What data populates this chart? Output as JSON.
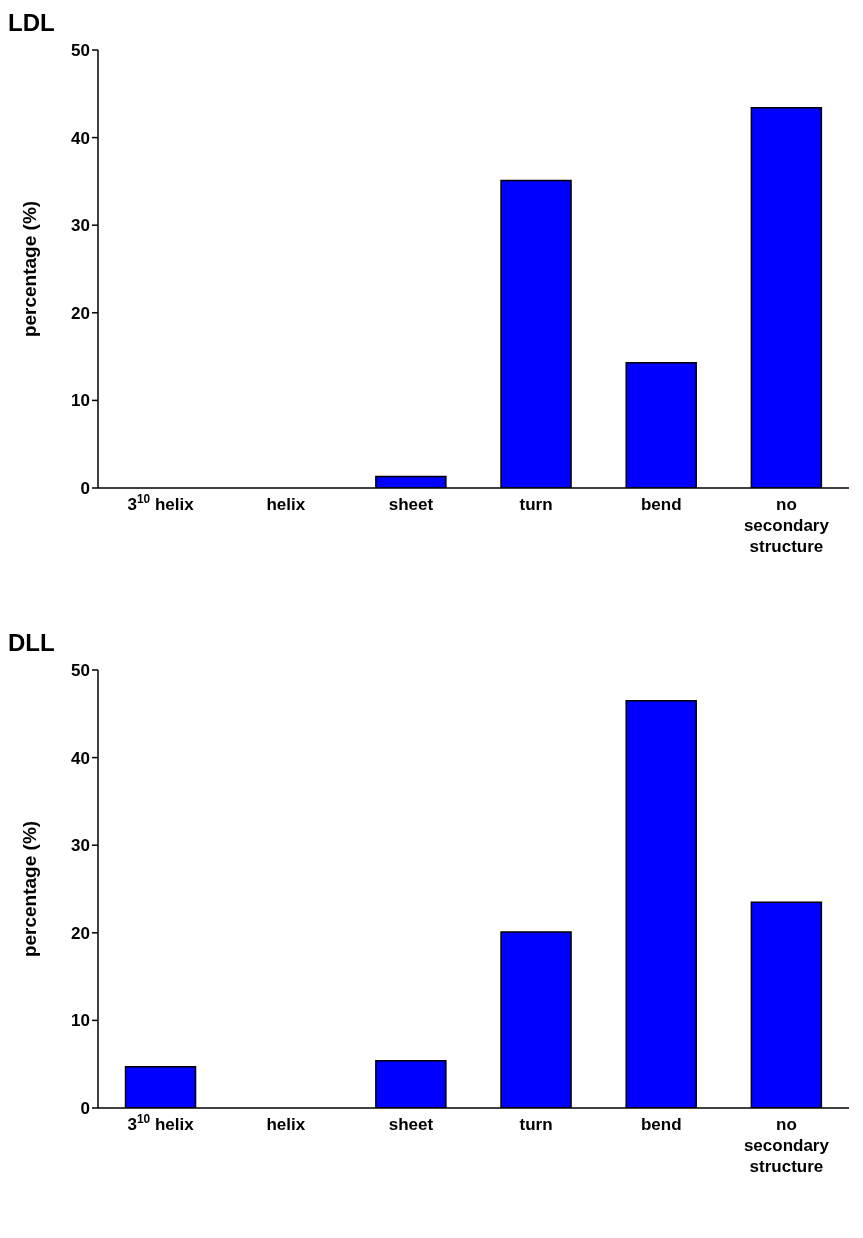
{
  "chart_data": [
    {
      "type": "bar",
      "title": "LDL",
      "ylabel": "percentage (%)",
      "categories": [
        "3$^{10}$ helix",
        "helix",
        "sheet",
        "turn",
        "bend",
        "no secondary structure"
      ],
      "values": [
        0,
        0,
        1.3,
        35.1,
        14.3,
        43.4
      ],
      "color": "#0000ff",
      "ylim": [
        0,
        50
      ],
      "yticks": [
        0,
        10,
        20,
        30,
        40,
        50
      ],
      "grid": false,
      "legend": false
    },
    {
      "type": "bar",
      "title": "DLL",
      "ylabel": "percentage (%)",
      "categories": [
        "3$^{10}$ helix",
        "helix",
        "sheet",
        "turn",
        "bend",
        "no secondary structure"
      ],
      "values": [
        4.7,
        0,
        5.4,
        20.1,
        46.5,
        23.5
      ],
      "color": "#0000ff",
      "ylim": [
        0,
        50
      ],
      "yticks": [
        0,
        10,
        20,
        30,
        40,
        50
      ],
      "grid": false,
      "legend": false
    }
  ]
}
